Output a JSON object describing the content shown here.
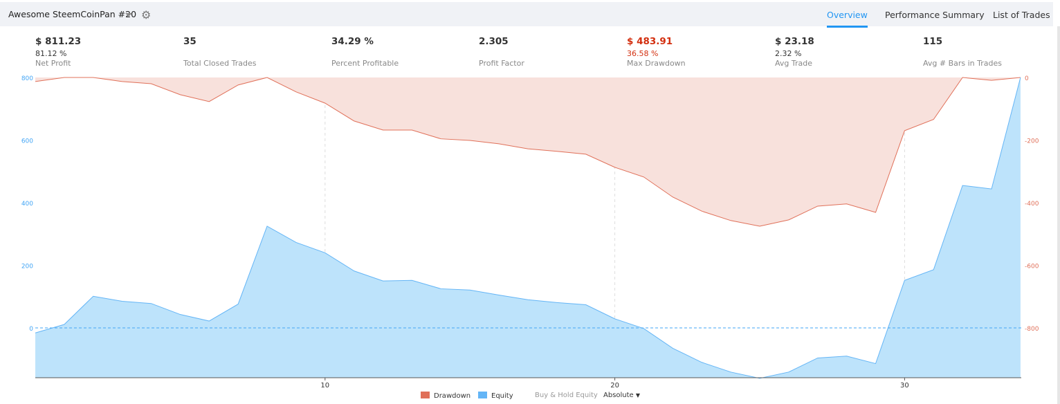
{
  "header": {
    "title": "Awesome SteemCoinPan #20",
    "tabs": [
      {
        "label": "Overview",
        "active": true
      },
      {
        "label": "Performance Summary"
      },
      {
        "label": "List of Trades"
      }
    ]
  },
  "stats": [
    {
      "value": "$ 811.23",
      "sub": "81.12 %",
      "label": "Net Profit"
    },
    {
      "value": "35",
      "sub": "",
      "label": "Total Closed Trades"
    },
    {
      "value": "34.29 %",
      "sub": "",
      "label": "Percent Profitable"
    },
    {
      "value": "2.305",
      "sub": "",
      "label": "Profit Factor"
    },
    {
      "value": "$ 483.91",
      "sub": "36.58 %",
      "label": "Max Drawdown",
      "negative": true
    },
    {
      "value": "$ 23.18",
      "sub": "2.32 %",
      "label": "Avg Trade"
    },
    {
      "value": "115",
      "sub": "",
      "label": "Avg # Bars in Trades"
    }
  ],
  "colors": {
    "accent": "#2196f3",
    "drawdown": "#e07059",
    "drawdown_fill": "#f8e1dc",
    "equity": "#64b5f6",
    "equity_fill": "#bde3fb"
  },
  "legend": {
    "drawdown": "Drawdown",
    "equity": "Equity",
    "buy_hold": "Buy & Hold Equity",
    "mode": "Absolute"
  },
  "chart_data": {
    "type": "area",
    "x_ticks": [
      10,
      20,
      30
    ],
    "left_axis": {
      "ticks": [
        "800",
        "600",
        "400",
        "200",
        "0"
      ],
      "range": [
        -161,
        800
      ]
    },
    "right_axis": {
      "ticks": [
        "0",
        "-200",
        "-400",
        "-600",
        "-800"
      ],
      "range": [
        -800,
        0
      ]
    },
    "series": [
      {
        "name": "Equity",
        "axis": "left",
        "values": [
          -16,
          11,
          101,
          85,
          78,
          43,
          22,
          76,
          325,
          273,
          240,
          182,
          150,
          152,
          125,
          121,
          105,
          90,
          81,
          74,
          29,
          -2,
          -65,
          -110,
          -141,
          -161,
          -141,
          -96,
          -90,
          -114,
          152,
          186,
          455,
          444,
          811
        ]
      },
      {
        "name": "Drawdown",
        "axis": "right",
        "values": [
          -13,
          0,
          0,
          -13,
          -20,
          -55,
          -77,
          -24,
          0,
          -46,
          -82,
          -139,
          -168,
          -168,
          -196,
          -201,
          -212,
          -228,
          -236,
          -245,
          -287,
          -318,
          -382,
          -427,
          -457,
          -475,
          -455,
          -411,
          -404,
          -431,
          -170,
          -134,
          0,
          -9,
          0
        ]
      }
    ]
  }
}
